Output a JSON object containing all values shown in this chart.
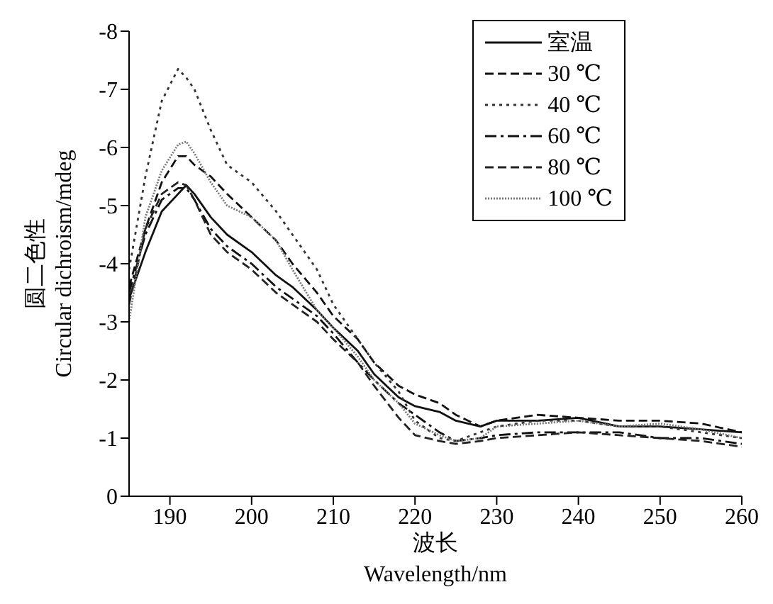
{
  "chart_data": {
    "type": "line",
    "xlabel": "波长\nWavelength/nm",
    "ylabel": "圆二色性\nCircular dichroism/mdeg",
    "x": [
      185,
      187,
      189,
      191,
      192,
      193,
      195,
      197,
      200,
      203,
      205,
      208,
      210,
      213,
      215,
      218,
      220,
      223,
      225,
      228,
      230,
      235,
      240,
      245,
      250,
      255,
      260
    ],
    "xlim": [
      185,
      260
    ],
    "xticks": [
      190,
      200,
      210,
      220,
      230,
      240,
      250,
      260
    ],
    "ylim": [
      0,
      -8
    ],
    "yticks": [
      0,
      -1,
      -2,
      -3,
      -4,
      -5,
      -6,
      -7,
      -8
    ],
    "grid": false,
    "legend": "top right",
    "marker": "none",
    "series": [
      {
        "name": "室温",
        "color": "#111111",
        "line_style": "solid",
        "values": [
          -3.4,
          -4.2,
          -4.9,
          -5.2,
          -5.35,
          -5.2,
          -4.8,
          -4.5,
          -4.2,
          -3.8,
          -3.6,
          -3.2,
          -2.9,
          -2.5,
          -2.1,
          -1.7,
          -1.55,
          -1.45,
          -1.3,
          -1.2,
          -1.3,
          -1.3,
          -1.35,
          -1.2,
          -1.2,
          -1.15,
          -1.1
        ]
      },
      {
        "name": "30 ℃",
        "color": "#111111",
        "line_style": "dashed",
        "values": [
          -3.6,
          -4.6,
          -5.4,
          -5.85,
          -5.85,
          -5.7,
          -5.5,
          -5.2,
          -4.8,
          -4.4,
          -4.0,
          -3.5,
          -3.1,
          -2.7,
          -2.3,
          -1.9,
          -1.75,
          -1.6,
          -1.4,
          -1.2,
          -1.3,
          -1.4,
          -1.35,
          -1.3,
          -1.3,
          -1.25,
          -1.1
        ]
      },
      {
        "name": "40 ℃",
        "color": "#333333",
        "line_style": "dotted",
        "values": [
          -3.9,
          -5.5,
          -6.8,
          -7.35,
          -7.2,
          -7.0,
          -6.3,
          -5.7,
          -5.4,
          -4.9,
          -4.5,
          -3.9,
          -3.3,
          -2.7,
          -2.3,
          -1.8,
          -1.3,
          -1.0,
          -0.95,
          -1.1,
          -1.2,
          -1.3,
          -1.3,
          -1.2,
          -1.2,
          -1.1,
          -1.0
        ]
      },
      {
        "name": "60 ℃",
        "color": "#111111",
        "line_style": "dashed",
        "values": [
          -3.5,
          -4.5,
          -5.1,
          -5.3,
          -5.3,
          -5.1,
          -4.6,
          -4.3,
          -4.0,
          -3.6,
          -3.4,
          -3.1,
          -2.8,
          -2.3,
          -2.0,
          -1.6,
          -1.4,
          -1.1,
          -0.95,
          -1.0,
          -1.05,
          -1.1,
          -1.1,
          -1.1,
          -1.0,
          -1.0,
          -0.9
        ]
      },
      {
        "name": "80 ℃",
        "color": "#222222",
        "line_style": "dashed",
        "values": [
          -3.3,
          -4.6,
          -5.2,
          -5.4,
          -5.35,
          -5.1,
          -4.5,
          -4.2,
          -3.9,
          -3.5,
          -3.3,
          -3.0,
          -2.7,
          -2.3,
          -1.9,
          -1.35,
          -1.05,
          -0.95,
          -0.9,
          -0.95,
          -1.0,
          -1.05,
          -1.1,
          -1.05,
          -1.0,
          -0.95,
          -0.85
        ]
      },
      {
        "name": "100 ℃",
        "color": "#777777",
        "line_style": "dotted",
        "values": [
          -3.0,
          -4.8,
          -5.6,
          -6.05,
          -6.1,
          -5.9,
          -5.4,
          -5.0,
          -4.8,
          -4.4,
          -3.9,
          -3.2,
          -2.9,
          -2.4,
          -2.0,
          -1.6,
          -1.25,
          -1.05,
          -0.95,
          -1.0,
          -1.2,
          -1.25,
          -1.3,
          -1.2,
          -1.25,
          -1.15,
          -1.0
        ]
      }
    ]
  }
}
